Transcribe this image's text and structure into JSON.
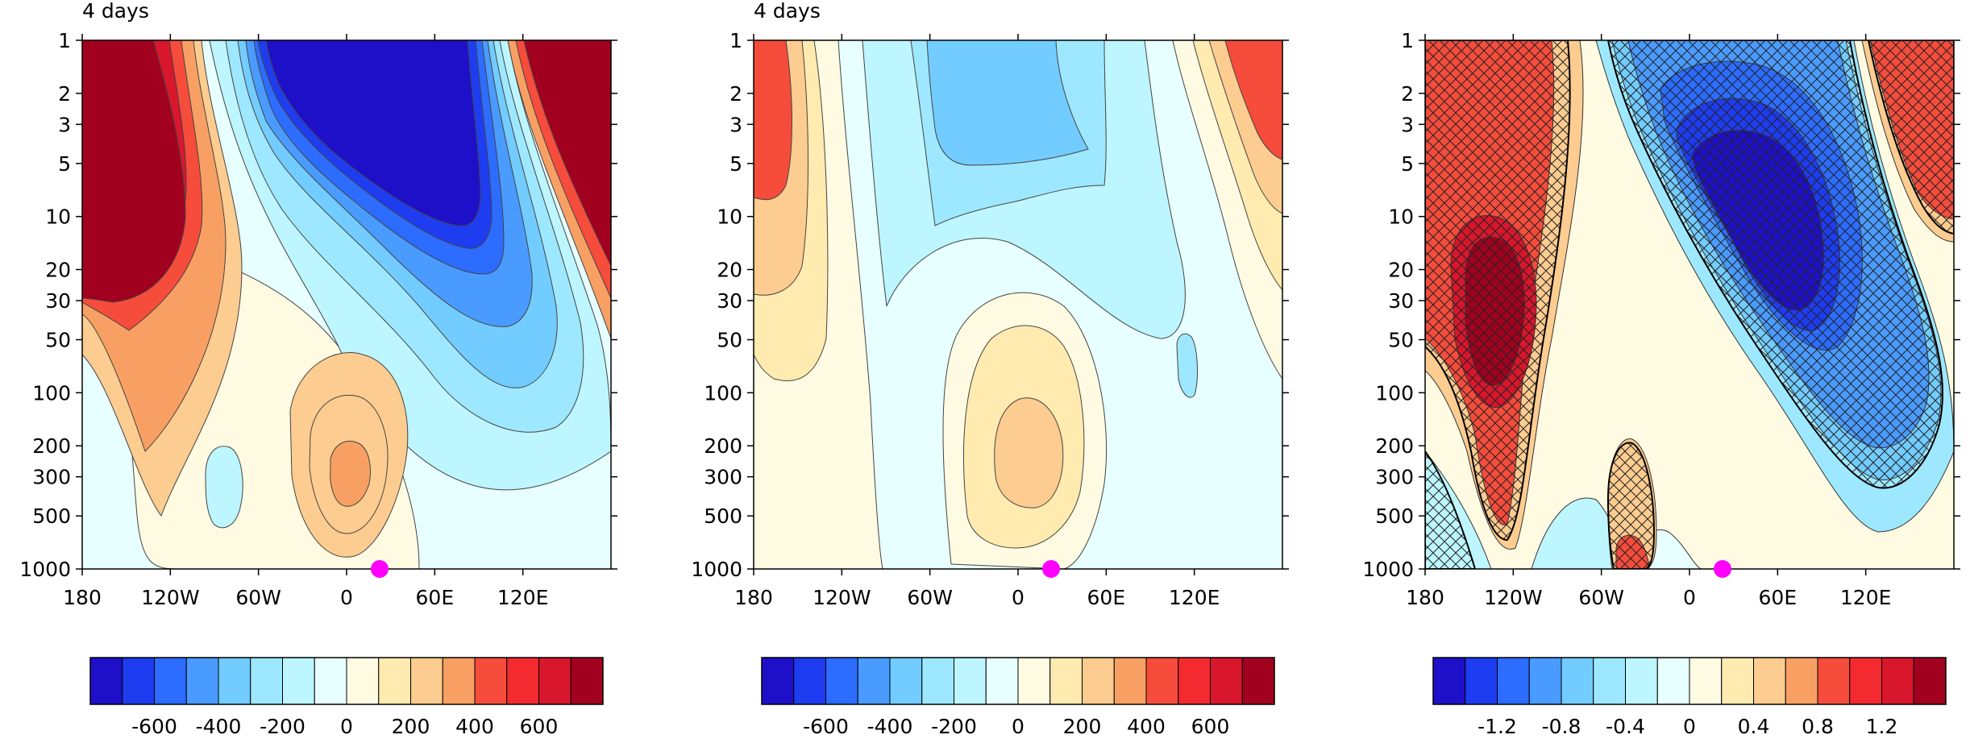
{
  "chart_data": [
    {
      "type": "heatmap",
      "title": "4 days",
      "x_ticks": [
        "180",
        "120W",
        "60W",
        "0",
        "60E",
        "120E"
      ],
      "y_ticks": [
        "1",
        "2",
        "3",
        "5",
        "10",
        "20",
        "30",
        "50",
        "100",
        "200",
        "300",
        "500",
        "1000"
      ],
      "y_scale": "log",
      "y_range": [
        1000,
        1
      ],
      "x_range": [
        -180,
        180
      ],
      "colorbar": {
        "tick_labels": [
          "-600",
          "-400",
          "-200",
          "0",
          "200",
          "400",
          "600"
        ],
        "levels": 16
      },
      "marker": {
        "x": 20,
        "y": 1000,
        "color": "#ff00ff"
      },
      "hatching": false
    },
    {
      "type": "heatmap",
      "title": "4 days",
      "x_ticks": [
        "180",
        "120W",
        "60W",
        "0",
        "60E",
        "120E"
      ],
      "y_ticks": [
        "1",
        "2",
        "3",
        "5",
        "10",
        "20",
        "30",
        "50",
        "100",
        "200",
        "300",
        "500",
        "1000"
      ],
      "y_scale": "log",
      "y_range": [
        1000,
        1
      ],
      "x_range": [
        -180,
        180
      ],
      "colorbar": {
        "tick_labels": [
          "-600",
          "-400",
          "-200",
          "0",
          "200",
          "400",
          "600"
        ],
        "levels": 16
      },
      "marker": {
        "x": 20,
        "y": 1000,
        "color": "#ff00ff"
      },
      "hatching": false
    },
    {
      "type": "heatmap",
      "title": "",
      "x_ticks": [
        "180",
        "120W",
        "60W",
        "0",
        "60E",
        "120E"
      ],
      "y_ticks": [
        "1",
        "2",
        "3",
        "5",
        "10",
        "20",
        "30",
        "50",
        "100",
        "200",
        "300",
        "500",
        "1000"
      ],
      "y_scale": "log",
      "y_range": [
        1000,
        1
      ],
      "x_range": [
        -180,
        180
      ],
      "colorbar": {
        "tick_labels": [
          "-1.2",
          "-0.8",
          "-0.4",
          "0",
          "0.4",
          "0.8",
          "1.2"
        ],
        "levels": 16
      },
      "marker": {
        "x": 20,
        "y": 1000,
        "color": "#ff00ff"
      },
      "hatching": true
    }
  ],
  "colors": {
    "scale": [
      "#1e10c8",
      "#1e3cf0",
      "#2c6cff",
      "#4a9bff",
      "#72ccff",
      "#9ee8ff",
      "#bdf6ff",
      "#e7ffff",
      "#fffbe3",
      "#ffeab0",
      "#fdcc90",
      "#f8a064",
      "#f54c3c",
      "#f32a2f",
      "#d8162c",
      "#a2001f"
    ],
    "marker": "#ff00ff",
    "contour": "#333333"
  }
}
